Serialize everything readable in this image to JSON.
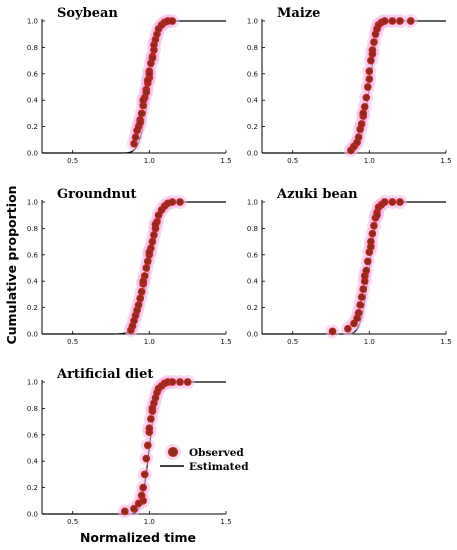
{
  "figure": {
    "ylabel": "Cumulative proportion",
    "xlabel": "Normalized time",
    "legend": {
      "observed_label": "Observed",
      "estimated_label": "Estimated"
    }
  },
  "colors": {
    "point_fill": "#8a2d1c",
    "point_stroke": "#d02020",
    "halo": "#f2b8ea",
    "line": "#000000"
  },
  "chart_data": [
    {
      "type": "scatter",
      "title": "Soybean",
      "xlim": [
        0.3,
        1.5
      ],
      "ylim": [
        0.0,
        1.0
      ],
      "x_ticks": [
        "0.5",
        "1.0",
        "1.5"
      ],
      "y_ticks": [
        "0.0",
        "0.2",
        "0.4",
        "0.6",
        "0.8",
        "1.0"
      ],
      "fit_params": {
        "mu": 1.0,
        "sigma": 0.05
      },
      "series": [
        {
          "name": "Observed",
          "x": [
            0.9,
            0.91,
            0.92,
            0.93,
            0.94,
            0.95,
            0.96,
            0.97,
            0.98,
            0.99,
            1.0,
            1.0,
            1.01,
            1.02,
            1.03,
            1.03,
            1.04,
            1.05,
            1.06,
            1.08,
            1.1,
            1.12,
            1.15,
            0.96,
            0.98,
            1.0,
            1.02,
            0.94,
            0.99
          ],
          "y": [
            0.07,
            0.12,
            0.17,
            0.2,
            0.25,
            0.3,
            0.36,
            0.42,
            0.48,
            0.53,
            0.57,
            0.62,
            0.68,
            0.73,
            0.78,
            0.82,
            0.86,
            0.9,
            0.94,
            0.97,
            0.99,
            1.0,
            1.0,
            0.4,
            0.46,
            0.6,
            0.72,
            0.23,
            0.55
          ]
        }
      ]
    },
    {
      "type": "scatter",
      "title": "Maize",
      "xlim": [
        0.3,
        1.5
      ],
      "ylim": [
        0.0,
        1.0
      ],
      "x_ticks": [
        "0.5",
        "1.0",
        "1.5"
      ],
      "y_ticks": [
        "0.0",
        "0.2",
        "0.4",
        "0.6",
        "0.8",
        "1.0"
      ],
      "fit_params": {
        "mu": 1.0,
        "sigma": 0.045
      },
      "series": [
        {
          "name": "Observed",
          "x": [
            0.88,
            0.9,
            0.92,
            0.93,
            0.94,
            0.95,
            0.96,
            0.97,
            0.98,
            0.99,
            1.0,
            1.0,
            1.01,
            1.02,
            1.03,
            1.04,
            1.05,
            1.06,
            1.08,
            1.1,
            1.15,
            1.2,
            1.27,
            0.96,
            1.02
          ],
          "y": [
            0.02,
            0.05,
            0.08,
            0.12,
            0.18,
            0.22,
            0.28,
            0.35,
            0.42,
            0.5,
            0.56,
            0.62,
            0.7,
            0.78,
            0.84,
            0.9,
            0.94,
            0.97,
            0.99,
            1.0,
            1.0,
            1.0,
            1.0,
            0.3,
            0.75
          ]
        }
      ]
    },
    {
      "type": "scatter",
      "title": "Groundnut",
      "xlim": [
        0.3,
        1.5
      ],
      "ylim": [
        0.0,
        1.0
      ],
      "x_ticks": [
        "0.5",
        "1.0",
        "1.5"
      ],
      "y_ticks": [
        "0.0",
        "0.2",
        "0.4",
        "0.6",
        "0.8",
        "1.0"
      ],
      "fit_params": {
        "mu": 1.0,
        "sigma": 0.065
      },
      "series": [
        {
          "name": "Observed",
          "x": [
            0.88,
            0.89,
            0.9,
            0.91,
            0.92,
            0.93,
            0.94,
            0.95,
            0.96,
            0.97,
            0.98,
            0.99,
            1.0,
            1.01,
            1.02,
            1.03,
            1.04,
            1.05,
            1.06,
            1.08,
            1.1,
            1.12,
            1.15,
            1.2,
            0.96,
            1.0,
            1.04
          ],
          "y": [
            0.03,
            0.06,
            0.1,
            0.14,
            0.18,
            0.22,
            0.27,
            0.32,
            0.38,
            0.44,
            0.5,
            0.55,
            0.6,
            0.65,
            0.7,
            0.75,
            0.8,
            0.85,
            0.9,
            0.94,
            0.97,
            0.99,
            1.0,
            1.0,
            0.4,
            0.62,
            0.83
          ]
        }
      ]
    },
    {
      "type": "scatter",
      "title": "Azuki bean",
      "xlim": [
        0.3,
        1.5
      ],
      "ylim": [
        0.0,
        1.0
      ],
      "x_ticks": [
        "0.5",
        "1.0",
        "1.5"
      ],
      "y_ticks": [
        "0.0",
        "0.2",
        "0.4",
        "0.6",
        "0.8",
        "1.0"
      ],
      "fit_params": {
        "mu": 1.0,
        "sigma": 0.045
      },
      "series": [
        {
          "name": "Observed",
          "x": [
            0.76,
            0.86,
            0.9,
            0.92,
            0.93,
            0.94,
            0.95,
            0.96,
            0.97,
            0.98,
            0.99,
            1.0,
            1.01,
            1.02,
            1.03,
            1.04,
            1.05,
            1.06,
            1.08,
            1.1,
            1.15,
            1.2,
            0.97,
            1.01,
            1.05
          ],
          "y": [
            0.02,
            0.04,
            0.08,
            0.12,
            0.16,
            0.22,
            0.28,
            0.34,
            0.4,
            0.48,
            0.55,
            0.62,
            0.7,
            0.76,
            0.82,
            0.88,
            0.92,
            0.96,
            0.98,
            1.0,
            1.0,
            1.0,
            0.44,
            0.66,
            0.9
          ]
        }
      ]
    },
    {
      "type": "scatter",
      "title": "Artificial diet",
      "xlim": [
        0.3,
        1.5
      ],
      "ylim": [
        0.0,
        1.0
      ],
      "x_ticks": [
        "0.5",
        "1.0",
        "1.5"
      ],
      "y_ticks": [
        "0.0",
        "0.2",
        "0.4",
        "0.6",
        "0.8",
        "1.0"
      ],
      "fit_params": {
        "mu": 1.0,
        "sigma": 0.04
      },
      "series": [
        {
          "name": "Observed",
          "x": [
            0.84,
            0.9,
            0.93,
            0.95,
            0.96,
            0.97,
            0.98,
            0.99,
            1.0,
            1.01,
            1.02,
            1.03,
            1.04,
            1.05,
            1.06,
            1.08,
            1.1,
            1.12,
            1.15,
            1.2,
            1.25,
            0.96,
            1.0,
            1.02
          ],
          "y": [
            0.02,
            0.04,
            0.08,
            0.14,
            0.2,
            0.3,
            0.42,
            0.52,
            0.62,
            0.72,
            0.78,
            0.84,
            0.88,
            0.92,
            0.95,
            0.97,
            0.99,
            1.0,
            1.0,
            1.0,
            1.0,
            0.1,
            0.65,
            0.8
          ]
        }
      ]
    }
  ]
}
